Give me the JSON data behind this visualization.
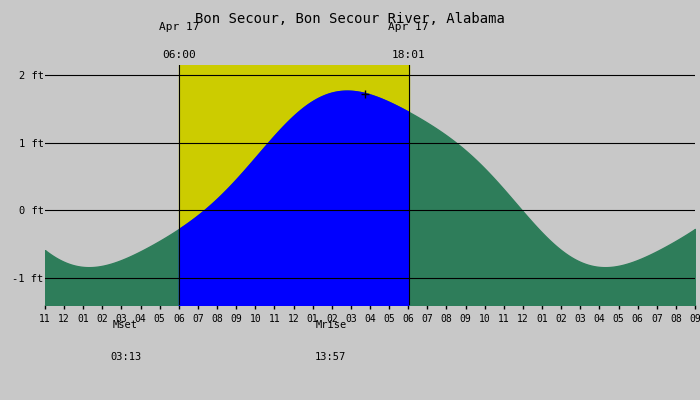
{
  "title": "Bon Secour, Bon Secour River, Alabama",
  "title_fontsize": 10,
  "background_color": "#c8c8c8",
  "yellow_color": "#cccc00",
  "green_color": "#2e7d5a",
  "blue_color": "#0000ff",
  "moonset_x": 6.0,
  "moonset_label_line1": "Apr 17",
  "moonset_label_line2": "06:00",
  "moonrise_x": 18.017,
  "moonrise_label_line1": "Apr 17",
  "moonrise_label_line2": "18:01",
  "mset_hour": 3.217,
  "mset_label": "Mset\n03:13",
  "mrise_hour": 13.95,
  "mrise_label": "Mrise\n13:57",
  "x_min": -1.0,
  "x_max": 33.0,
  "ylim_min": -1.6,
  "ylim_max": 2.5,
  "plot_ymin": -1.4,
  "plot_ymax": 2.15,
  "ytick_positions": [
    -1.0,
    0.0,
    1.0,
    2.0
  ],
  "ytick_labels": [
    "-1 ft",
    "0 ft",
    "1 ft",
    "2 ft"
  ],
  "hline_color": "#000000",
  "hline_lw": 0.8,
  "marker_plus_x": 15.75,
  "marker_plus_y": 1.72,
  "tide_low_x": 2.0,
  "tide_low_y": -0.82,
  "tide_high_x": 15.5,
  "tide_high_y": 1.75
}
